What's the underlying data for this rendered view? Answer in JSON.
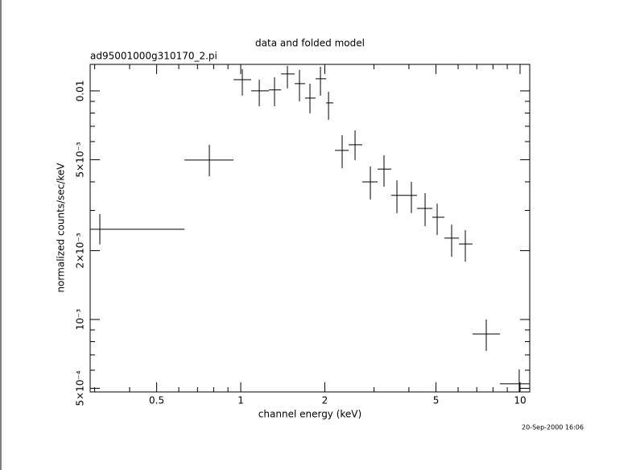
{
  "chart_data": {
    "type": "scatter",
    "title": "data and folded model",
    "subtitle": "ad95001000g310170_2.pi",
    "x_label": "channel energy (keV)",
    "y_label": "normalized counts/sec/keV",
    "timestamp": "20-Sep-2000 16:06",
    "xscale": "log",
    "yscale": "log",
    "color": "#000000",
    "xlim": [
      0.289,
      10.83
    ],
    "ylim": [
      0.000482,
      0.01306
    ],
    "xticks": [
      0.5,
      1,
      2,
      5,
      10
    ],
    "xminorticks": [
      0.3,
      0.4,
      0.6,
      0.7,
      0.8,
      0.9,
      3,
      4,
      6,
      7,
      8,
      9
    ],
    "yticks": [
      {
        "value": 0.0005,
        "label": "5×10⁻⁴"
      },
      {
        "value": 0.001,
        "label": "10⁻³"
      },
      {
        "value": 0.002,
        "label": "2×10⁻³"
      },
      {
        "value": 0.005,
        "label": "5×10⁻³"
      },
      0.01
    ],
    "yminorticks": [
      0.0006,
      0.0007,
      0.0008,
      0.0009,
      0.003,
      0.004,
      0.006,
      0.007,
      0.008,
      0.009
    ],
    "x": [
      0.313,
      0.772,
      1.013,
      1.165,
      1.321,
      1.469,
      1.623,
      1.769,
      1.929,
      2.062,
      2.307,
      2.566,
      2.911,
      3.258,
      3.624,
      4.083,
      4.571,
      5.049,
      5.689,
      6.368,
      7.568,
      9.93
    ],
    "x_min": [
      0.289,
      0.629,
      0.942,
      1.09,
      1.262,
      1.394,
      1.56,
      1.7,
      1.854,
      2.021,
      2.174,
      2.433,
      2.724,
      3.09,
      3.459,
      3.871,
      4.277,
      4.852,
      5.359,
      6.04,
      6.761,
      8.472
    ],
    "x_max": [
      0.629,
      0.942,
      1.09,
      1.262,
      1.394,
      1.56,
      1.7,
      1.854,
      2.021,
      2.145,
      2.433,
      2.724,
      3.09,
      3.459,
      3.871,
      4.277,
      4.852,
      5.359,
      6.04,
      6.761,
      8.472,
      10.83
    ],
    "y": [
      0.00248,
      0.00498,
      0.0112,
      0.01,
      0.0101,
      0.01186,
      0.01076,
      0.0093,
      0.0113,
      0.00886,
      0.00549,
      0.00581,
      0.004,
      0.00455,
      0.00349,
      0.00349,
      0.00306,
      0.0028,
      0.00227,
      0.00214,
      0.000864,
      0.000523
    ],
    "y_min": [
      0.00213,
      0.00423,
      0.00953,
      0.00857,
      0.00857,
      0.01025,
      0.009,
      0.00797,
      0.00953,
      0.00747,
      0.00459,
      0.00498,
      0.00335,
      0.00381,
      0.00292,
      0.00292,
      0.00256,
      0.00234,
      0.00188,
      0.00179,
      0.000729,
      0.000482
    ],
    "y_max": [
      0.00289,
      0.00581,
      0.01245,
      0.0112,
      0.01148,
      0.01286,
      0.01235,
      0.01076,
      0.01275,
      0.00992,
      0.0064,
      0.00672,
      0.00467,
      0.00523,
      0.00406,
      0.004,
      0.00357,
      0.00321,
      0.0026,
      0.00246,
      0.001,
      0.000605
    ]
  }
}
